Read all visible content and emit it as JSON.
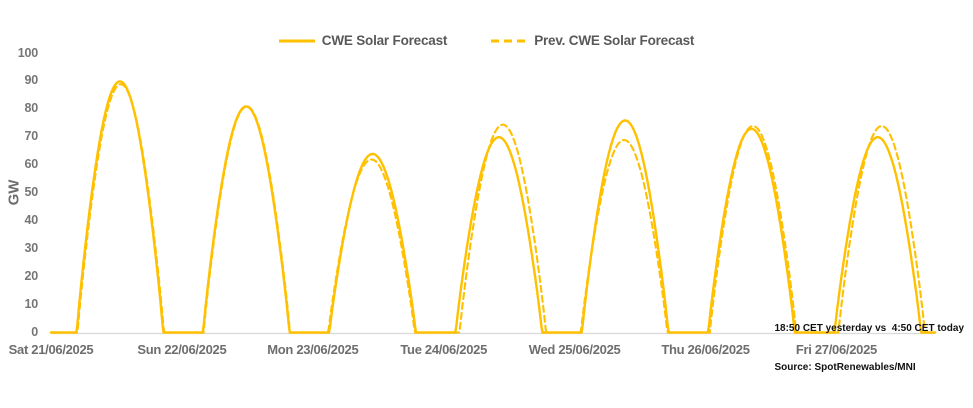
{
  "chart_data": {
    "type": "line",
    "title": "",
    "ylabel": "GW",
    "ylim": [
      0,
      100
    ],
    "y_ticks": [
      0,
      10,
      20,
      30,
      40,
      50,
      60,
      70,
      80,
      90,
      100
    ],
    "x_tick_labels": [
      "Sat 21/06/2025",
      "Sun 22/06/2025",
      "Mon 23/06/2025",
      "Tue 24/06/2025",
      "Wed 25/06/2025",
      "Thu 26/06/2025",
      "Fri 27/06/2025"
    ],
    "grid": "off",
    "legend_position": "top-center",
    "line_color": "#FFC000",
    "axis_line_color": "#D9D9D9",
    "legend": [
      {
        "label": "CWE Solar Forecast",
        "style": "solid",
        "color": "#FFC000"
      },
      {
        "label": "Prev. CWE Solar Forecast",
        "style": "dashed",
        "color": "#FFC000"
      }
    ],
    "daylight": {
      "sunrise_hour": 4.9,
      "sunset_hour": 21.3,
      "night_value_gw": 0
    },
    "series": [
      {
        "name": "CWE Solar Forecast",
        "style": "solid",
        "daily_peaks_gw": [
          90,
          81,
          64,
          70,
          76,
          73,
          70
        ],
        "peak_shift_hours": [
          0,
          0,
          0,
          0,
          0,
          0,
          0
        ]
      },
      {
        "name": "Prev. CWE Solar Forecast",
        "style": "dashed",
        "daily_peaks_gw": [
          89,
          81,
          62,
          74.5,
          69,
          74,
          74
        ],
        "peak_shift_hours": [
          0.15,
          0.1,
          -0.2,
          0.75,
          -0.2,
          0.3,
          0.75
        ]
      }
    ]
  },
  "footnote": {
    "line1": "18:50 CET yesterday vs  4:50 CET today",
    "line2": "Source: SpotRenewables/MNI"
  }
}
